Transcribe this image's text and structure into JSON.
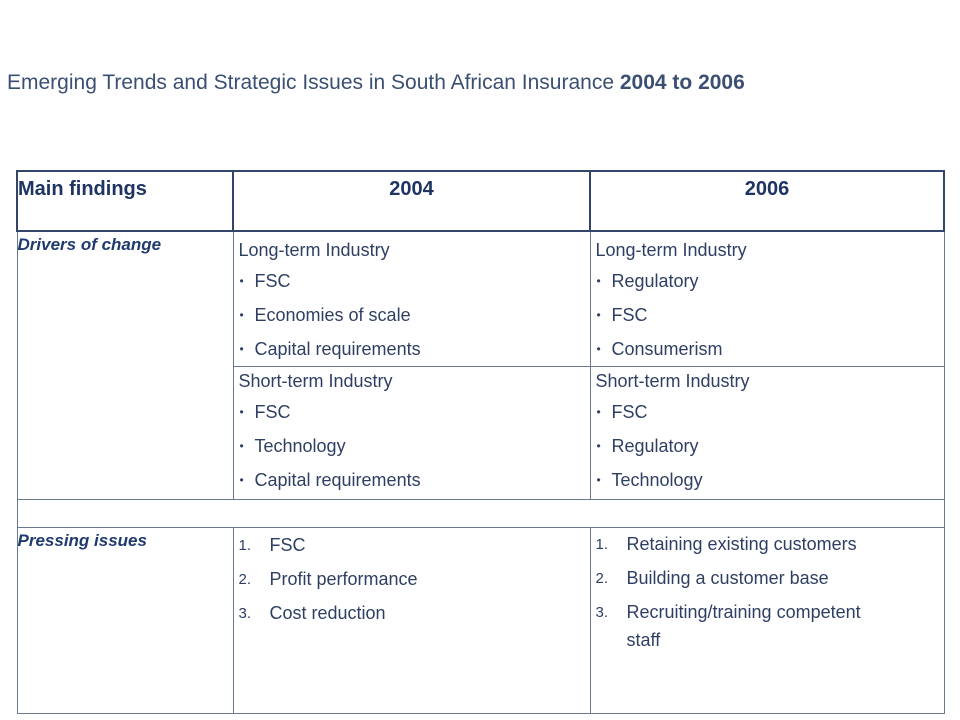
{
  "title": {
    "text": "Emerging Trends and Strategic Issues in South African Insurance",
    "bold_suffix": "2004 to 2006"
  },
  "table": {
    "headers": [
      "Main findings",
      "2004",
      "2006"
    ],
    "rows": {
      "drivers": {
        "label": "Drivers of change",
        "long_term": {
          "col_2004": {
            "heading": "Long-term Industry",
            "items": [
              "FSC",
              "Economies of scale",
              "Capital requirements"
            ]
          },
          "col_2006": {
            "heading": "Long-term Industry",
            "items": [
              "Regulatory",
              "FSC",
              "Consumerism"
            ]
          }
        },
        "short_term": {
          "col_2004": {
            "heading": "Short-term Industry",
            "items": [
              "FSC",
              "Technology",
              "Capital requirements"
            ]
          },
          "col_2006": {
            "heading": "Short-term Industry",
            "items": [
              "FSC",
              "Regulatory",
              "Technology"
            ]
          }
        }
      },
      "pressing": {
        "label": "Pressing issues",
        "col_2004": [
          "FSC",
          "Profit performance",
          "Cost reduction"
        ],
        "col_2006": [
          "Retaining existing customers",
          "Building a customer base",
          "Recruiting/training competent staff"
        ],
        "numbers": [
          "1.",
          "2.",
          "3."
        ]
      }
    }
  },
  "colors": {
    "title": "#3b4f73",
    "header_text": "#1f3460",
    "row_label": "#1f3a6e",
    "border": "#33466a"
  }
}
